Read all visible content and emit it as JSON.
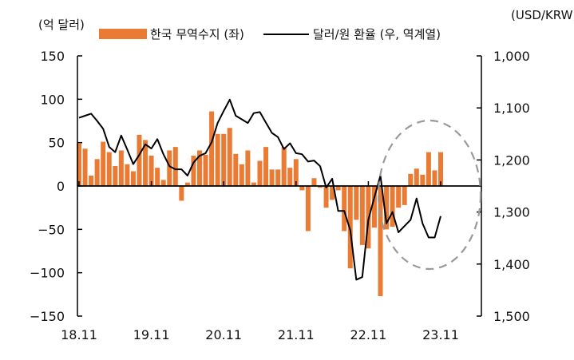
{
  "chart_data": {
    "type": "bar+line",
    "left_unit_label": "(억 달러)",
    "right_unit_label": "(USD/KRW)",
    "x_tick_labels": [
      "18.11",
      "19.11",
      "20.11",
      "21.11",
      "22.11",
      "23.11"
    ],
    "left_axis": {
      "ylim": [
        -150,
        150
      ],
      "ticks": [
        "150",
        "100",
        "50",
        "0",
        "-50",
        "-100",
        "-150"
      ],
      "tick_values": [
        150,
        100,
        50,
        0,
        -50,
        -100,
        -150
      ]
    },
    "right_axis": {
      "ylim": [
        1000,
        1500
      ],
      "reversed": true,
      "ticks": [
        "1,000",
        "1,100",
        "1,200",
        "1,300",
        "1,400",
        "1,500"
      ],
      "tick_values": [
        1000,
        1100,
        1200,
        1300,
        1400,
        1500
      ]
    },
    "grid": false,
    "legend_position": "top",
    "series": [
      {
        "name": "한국 무역수지 (좌)",
        "type": "bar",
        "axis": "left",
        "color": "#EA7B34",
        "values": [
          49,
          43,
          12,
          31,
          51,
          39,
          23,
          41,
          25,
          17,
          59,
          53,
          35,
          21,
          7,
          41,
          45,
          -17,
          4,
          35,
          41,
          36,
          86,
          60,
          60,
          67,
          37,
          25,
          41,
          4,
          29,
          45,
          19,
          19,
          45,
          21,
          31,
          -5,
          -52,
          9,
          -2,
          -25,
          -16,
          -5,
          -52,
          -95,
          -39,
          -68,
          -72,
          -48,
          -127,
          -50,
          -47,
          -25,
          -22,
          14,
          20,
          13,
          39,
          18,
          39
        ]
      },
      {
        "name": "달러/원 환율 (우, 역계열)",
        "type": "line",
        "axis": "right",
        "color": "#000000",
        "values": [
          1119,
          1115,
          1111,
          1125,
          1140,
          1175,
          1185,
          1153,
          1180,
          1208,
          1190,
          1170,
          1178,
          1160,
          1189,
          1212,
          1218,
          1218,
          1230,
          1205,
          1192,
          1187,
          1166,
          1129,
          1106,
          1084,
          1115,
          1122,
          1129,
          1110,
          1108,
          1128,
          1148,
          1156,
          1179,
          1168,
          1187,
          1189,
          1203,
          1201,
          1212,
          1253,
          1236,
          1298,
          1298,
          1335,
          1430,
          1425,
          1315,
          1272,
          1230,
          1322,
          1300,
          1339,
          1327,
          1315,
          1274,
          1322,
          1349,
          1349,
          1308
        ]
      }
    ],
    "annotation": "dashed-ellipse-highlight-recent-months"
  }
}
